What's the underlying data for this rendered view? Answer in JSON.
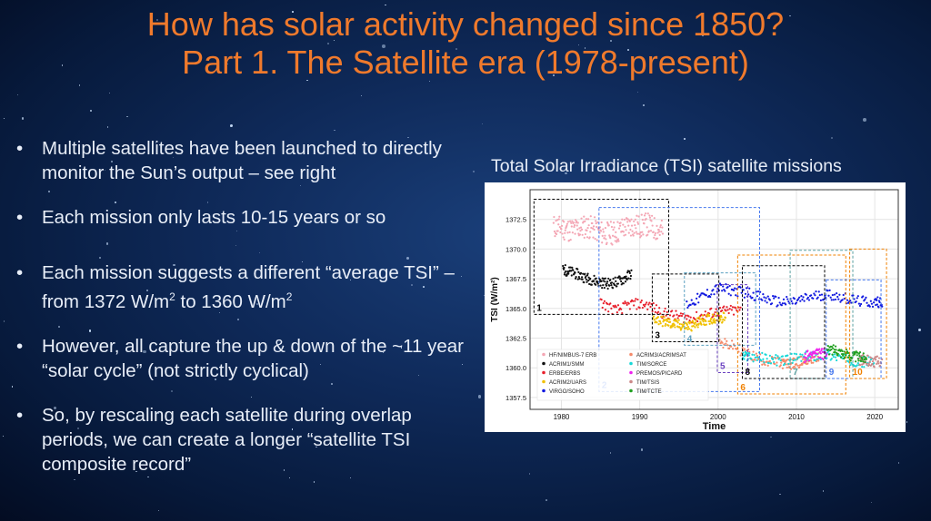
{
  "slide": {
    "title_line1": "How has solar activity changed since 1850?",
    "title_line2": "Part 1. The Satellite era (1978-present)",
    "bullets": [
      {
        "text": "Multiple satellites have been launched to directly monitor the Sun’s output – see right"
      },
      {
        "text": "Each mission only lasts 10-15 years or so"
      },
      {
        "pre": "Each mission suggests a different “average TSI” – from 1372 W/m",
        "sup1": "2",
        "mid": " to 1360 W/m",
        "sup2": "2"
      },
      {
        "text": "However, all capture the up & down of the ~11 year “solar cycle” (not strictly cyclical)"
      },
      {
        "text": "So, by rescaling each satellite during overlap periods, we can create a longer “satellite TSI composite record”"
      }
    ],
    "chart_heading": "Total Solar Irradiance (TSI) satellite missions"
  },
  "chart_data": {
    "type": "scatter",
    "xlabel": "Time",
    "ylabel": "TSI (W/m²)",
    "xlim": [
      1976,
      2023
    ],
    "ylim": [
      1356.5,
      1375
    ],
    "xticks": [
      1980,
      1990,
      2000,
      2010,
      2020
    ],
    "yticks": [
      1357.5,
      1360.0,
      1362.5,
      1365.0,
      1367.5,
      1370.0,
      1372.5
    ],
    "grid": true,
    "legend": [
      "HF/NIMBUS-7 ERB",
      "ACRIM1/SMM",
      "ERBE/ERBS",
      "ACRIM2/UARS",
      "VIRGO/SOHO",
      "ACRIM3/ACRIMSAT",
      "TIM/SORCE",
      "PREMOS/PICARD",
      "TIM/TSIS",
      "TIM/TCTE"
    ],
    "series": [
      {
        "name": "HF/NIMBUS-7 ERB",
        "color": "#f4a6b4",
        "points": [
          [
            1979,
            1371.9
          ],
          [
            1980,
            1371.8
          ],
          [
            1981,
            1371.6
          ],
          [
            1982,
            1371.7
          ],
          [
            1983,
            1371.9
          ],
          [
            1984,
            1371.8
          ],
          [
            1985,
            1371.4
          ],
          [
            1986,
            1371.3
          ],
          [
            1987,
            1371.4
          ],
          [
            1988,
            1371.8
          ],
          [
            1989,
            1372.0
          ],
          [
            1990,
            1371.9
          ],
          [
            1991,
            1372.1
          ],
          [
            1992,
            1371.7
          ],
          [
            1993,
            1371.5
          ]
        ]
      },
      {
        "name": "ACRIM1/SMM",
        "color": "#111111",
        "points": [
          [
            1980.2,
            1368.3
          ],
          [
            1981,
            1368.1
          ],
          [
            1982,
            1367.9
          ],
          [
            1983,
            1367.6
          ],
          [
            1984,
            1367.4
          ],
          [
            1985,
            1367.2
          ],
          [
            1986,
            1367.1
          ],
          [
            1987,
            1367.2
          ],
          [
            1988,
            1367.5
          ],
          [
            1989,
            1368.0
          ]
        ]
      },
      {
        "name": "ERBE/ERBS",
        "color": "#e8202c",
        "points": [
          [
            1985,
            1365.5
          ],
          [
            1987,
            1364.8
          ],
          [
            1989,
            1365.4
          ],
          [
            1991,
            1365.3
          ],
          [
            1993,
            1364.6
          ],
          [
            1995,
            1364.3
          ],
          [
            1997,
            1364.2
          ],
          [
            1999,
            1364.6
          ],
          [
            2001,
            1364.8
          ],
          [
            2003,
            1364.8
          ]
        ]
      },
      {
        "name": "ACRIM2/UARS",
        "color": "#f0c000",
        "points": [
          [
            1991.7,
            1364.2
          ],
          [
            1993,
            1363.9
          ],
          [
            1994,
            1363.7
          ],
          [
            1995,
            1363.6
          ],
          [
            1996,
            1363.5
          ],
          [
            1997,
            1363.6
          ],
          [
            1998,
            1364.0
          ],
          [
            1999,
            1364.1
          ],
          [
            2000,
            1364.3
          ],
          [
            2001,
            1364.2
          ]
        ]
      },
      {
        "name": "VIRGO/SOHO",
        "color": "#1018e0",
        "points": [
          [
            1996,
            1365.3
          ],
          [
            1998,
            1366.0
          ],
          [
            2000,
            1366.7
          ],
          [
            2002,
            1366.5
          ],
          [
            2004,
            1366.3
          ],
          [
            2006,
            1365.8
          ],
          [
            2008,
            1365.5
          ],
          [
            2010,
            1365.6
          ],
          [
            2012,
            1366.0
          ],
          [
            2014,
            1366.2
          ],
          [
            2016,
            1365.9
          ],
          [
            2018,
            1365.6
          ],
          [
            2020,
            1365.5
          ],
          [
            2021,
            1365.6
          ]
        ]
      },
      {
        "name": "ACRIM3/ACRIMSAT",
        "color": "#f58a6a",
        "points": [
          [
            2000.2,
            1362.1
          ],
          [
            2002,
            1361.8
          ],
          [
            2004,
            1361.1
          ],
          [
            2006,
            1360.6
          ],
          [
            2008,
            1360.4
          ],
          [
            2009,
            1360.3
          ],
          [
            2010,
            1360.4
          ],
          [
            2011,
            1360.6
          ],
          [
            2012,
            1360.8
          ],
          [
            2013,
            1360.9
          ]
        ]
      },
      {
        "name": "TIM/SORCE",
        "color": "#18d8d8",
        "points": [
          [
            2003.1,
            1360.9
          ],
          [
            2004,
            1361.0
          ],
          [
            2006,
            1360.8
          ],
          [
            2008,
            1360.6
          ],
          [
            2010,
            1360.8
          ],
          [
            2012,
            1361.0
          ],
          [
            2014,
            1361.1
          ],
          [
            2016,
            1360.8
          ],
          [
            2018,
            1360.5
          ],
          [
            2020,
            1360.5
          ]
        ]
      },
      {
        "name": "PREMOS/PICARD",
        "color": "#ee22ee",
        "points": [
          [
            2011,
            1360.9
          ],
          [
            2012,
            1361.1
          ],
          [
            2013,
            1361.2
          ],
          [
            2014,
            1361.1
          ]
        ]
      },
      {
        "name": "TIM/TSIS",
        "color": "#cc8888",
        "points": [
          [
            2018,
            1360.7
          ],
          [
            2019,
            1360.6
          ],
          [
            2020,
            1360.5
          ],
          [
            2021,
            1360.6
          ]
        ]
      },
      {
        "name": "TIM/TCTE",
        "color": "#20a020",
        "points": [
          [
            2013.9,
            1361.4
          ],
          [
            2015,
            1361.6
          ],
          [
            2016,
            1361.2
          ],
          [
            2017,
            1361.0
          ],
          [
            2018,
            1360.9
          ],
          [
            2019,
            1360.8
          ]
        ]
      }
    ],
    "mission_boxes": [
      {
        "label": "1",
        "color": "#000000",
        "x": [
          1976.5,
          1993.7
        ],
        "y": [
          1364.5,
          1374.2
        ]
      },
      {
        "label": "2",
        "color": "#4477ee",
        "x": [
          1984.8,
          2005.3
        ],
        "y": [
          1358.0,
          1373.5
        ]
      },
      {
        "label": "3",
        "color": "#000000",
        "x": [
          1991.6,
          2000.1
        ],
        "y": [
          1362.2,
          1367.9
        ]
      },
      {
        "label": "4",
        "color": "#5aa0c0",
        "x": [
          1995.7,
          2004.8
        ],
        "y": [
          1361.9,
          1368.0
        ]
      },
      {
        "label": "5",
        "color": "#6a40c0",
        "x": [
          1999.9,
          2003.8
        ],
        "y": [
          1359.6,
          1367.0
        ]
      },
      {
        "label": "6",
        "color": "#f08000",
        "x": [
          2002.5,
          2016.3
        ],
        "y": [
          1357.8,
          1369.5
        ]
      },
      {
        "label": "7",
        "color": "#5aa0a0",
        "x": [
          2009.2,
          2017.2
        ],
        "y": [
          1359.1,
          1369.9
        ]
      },
      {
        "label": "8",
        "color": "#000000",
        "x": [
          2003.1,
          2013.6
        ],
        "y": [
          1359.1,
          1368.6
        ]
      },
      {
        "label": "9",
        "color": "#4477ee",
        "x": [
          2013.8,
          2020.8
        ],
        "y": [
          1359.1,
          1367.4
        ]
      },
      {
        "label": "10",
        "color": "#f08000",
        "x": [
          2016.8,
          2021.5
        ],
        "y": [
          1359.1,
          1370.0
        ]
      }
    ]
  }
}
